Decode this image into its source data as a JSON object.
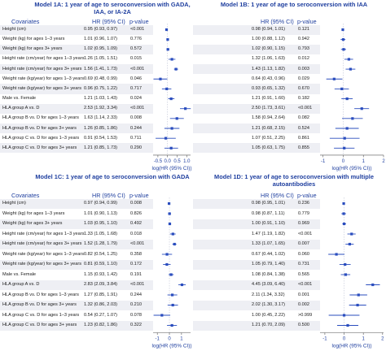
{
  "colors": {
    "marker": "#2a4dbe",
    "title": "#1f3f9f",
    "band": "#eeeff4"
  },
  "chart_data": [
    {
      "type": "forest",
      "title": "Model 1A: 1 year of age to seroconversion with GADA, IAA, or IA-2A",
      "headers": {
        "covariates": "Covariates",
        "hr": "HR (95% CI)",
        "p": "p-value"
      },
      "xlabel": "log(HR (95% CI))",
      "xticks": [
        -0.5,
        0.0,
        0.5,
        1.0
      ],
      "xtick_labels": [
        "-0.5",
        "0.0",
        "0.5",
        "1.0"
      ],
      "xlim": [
        -0.75,
        1.2
      ],
      "rows": [
        {
          "label": "Height (cm)",
          "hr": "0.95 (0.93, 0.97)",
          "p": "<0.001",
          "est": -0.05,
          "lo": -0.07,
          "hi": -0.03
        },
        {
          "label": "Weight (kg) for ages 1–3 years",
          "hr": "1.01 (0.96, 1.07)",
          "p": "0.776",
          "est": 0.01,
          "lo": -0.04,
          "hi": 0.07
        },
        {
          "label": "Weight (kg) for ages 3+ years",
          "hr": "1.02 (0.95, 1.09)",
          "p": "0.572",
          "est": 0.02,
          "lo": -0.05,
          "hi": 0.09
        },
        {
          "label": "Height rate (cm/year) for ages 1–3 years",
          "hr": "1.26 (1.05, 1.51)",
          "p": "0.015",
          "est": 0.23,
          "lo": 0.05,
          "hi": 0.41
        },
        {
          "label": "Height rate (cm/year) for ages 3+ years",
          "hr": "1.56 (1.41, 1.73)",
          "p": "<0.001",
          "est": 0.44,
          "lo": 0.34,
          "hi": 0.55
        },
        {
          "label": "Weight rate (kg/year) for ages 1–3 years",
          "hr": "0.69 (0.48, 0.99)",
          "p": "0.046",
          "est": -0.37,
          "lo": -0.73,
          "hi": -0.01
        },
        {
          "label": "Weight rate (kg/year) for ages 3+ years",
          "hr": "0.96 (0.75, 1.22)",
          "p": "0.717",
          "est": -0.04,
          "lo": -0.29,
          "hi": 0.2
        },
        {
          "label": "Male vs. Female",
          "hr": "1.21 (1.03, 1.43)",
          "p": "0.024",
          "est": 0.19,
          "lo": 0.03,
          "hi": 0.36
        },
        {
          "label": "HLA group A vs. D",
          "hr": "2.53 (1.92, 3.34)",
          "p": "<0.001",
          "est": 0.93,
          "lo": 0.65,
          "hi": 1.21
        },
        {
          "label": "HLA group B vs. D for ages 1–3 years",
          "hr": "1.63 (1.14, 2.33)",
          "p": "0.008",
          "est": 0.49,
          "lo": 0.13,
          "hi": 0.85
        },
        {
          "label": "HLA group B vs. D for ages 3+ years",
          "hr": "1.26 (0.85, 1.86)",
          "p": "0.244",
          "est": 0.23,
          "lo": -0.16,
          "hi": 0.62
        },
        {
          "label": "HLA group C vs. D for ages 1–3 years",
          "hr": "0.91 (0.54, 1.53)",
          "p": "0.711",
          "est": -0.09,
          "lo": -0.62,
          "hi": 0.43
        },
        {
          "label": "HLA group C vs. D for ages 3+ years",
          "hr": "1.21 (0.85, 1.73)",
          "p": "0.290",
          "est": 0.19,
          "lo": -0.16,
          "hi": 0.55
        }
      ]
    },
    {
      "type": "forest",
      "title": "Model 1B: 1 year of age to seroconversion with IAA",
      "headers": {
        "covariates": "",
        "hr": "HR (95% CI)",
        "p": "p-value"
      },
      "xlabel": "log(HR (95% CI))",
      "xticks": [
        -1,
        0,
        1,
        2
      ],
      "xtick_labels": [
        "-1",
        "0",
        "1",
        "2"
      ],
      "xlim": [
        -1.15,
        2.0
      ],
      "rows": [
        {
          "label": "Height (cm)",
          "hr": "0.98 (0.94, 1.01)",
          "p": "0.121",
          "est": -0.02,
          "lo": -0.06,
          "hi": 0.01
        },
        {
          "label": "Weight (kg) for ages 1–3 years",
          "hr": "1.00 (0.88, 1.12)",
          "p": "0.942",
          "est": 0.0,
          "lo": -0.13,
          "hi": 0.11
        },
        {
          "label": "Weight (kg) for ages 3+ years",
          "hr": "1.02 (0.90, 1.15)",
          "p": "0.793",
          "est": 0.02,
          "lo": -0.11,
          "hi": 0.14
        },
        {
          "label": "Height rate (cm/year) for ages 1–3 years",
          "hr": "1.32 (1.06, 1.63)",
          "p": "0.012",
          "est": 0.28,
          "lo": 0.06,
          "hi": 0.49
        },
        {
          "label": "Height rate (cm/year) for ages 3+ years",
          "hr": "1.43 (1.13, 1.82)",
          "p": "0.003",
          "est": 0.36,
          "lo": 0.12,
          "hi": 0.6
        },
        {
          "label": "Weight rate (kg/year) for ages 1–3 years",
          "hr": "0.64 (0.43, 0.96)",
          "p": "0.029",
          "est": -0.45,
          "lo": -0.84,
          "hi": -0.04
        },
        {
          "label": "Weight rate (kg/year) for ages 3+ years",
          "hr": "0.93 (0.65, 1.32)",
          "p": "0.670",
          "est": -0.07,
          "lo": -0.43,
          "hi": 0.28
        },
        {
          "label": "Male vs. Female",
          "hr": "1.21 (0.91, 1.60)",
          "p": "0.182",
          "est": 0.19,
          "lo": -0.09,
          "hi": 0.47
        },
        {
          "label": "HLA group A vs. D",
          "hr": "2.50 (1.73, 3.61)",
          "p": "<0.001",
          "est": 0.92,
          "lo": 0.55,
          "hi": 1.28
        },
        {
          "label": "HLA group B vs. D for ages 1–3 years",
          "hr": "1.58 (0.94, 2.64)",
          "p": "0.082",
          "est": 0.46,
          "lo": -0.06,
          "hi": 0.97
        },
        {
          "label": "HLA group B vs. D for ages 3+ years",
          "hr": "1.21 (0.68, 2.15)",
          "p": "0.524",
          "est": 0.19,
          "lo": -0.39,
          "hi": 0.77
        },
        {
          "label": "HLA group C vs. D for ages 1–3 years",
          "hr": "1.07 (0.51, 2.25)",
          "p": "0.861",
          "est": 0.07,
          "lo": -0.67,
          "hi": 0.81
        },
        {
          "label": "HLA group C vs. D for ages 3+ years",
          "hr": "1.05 (0.63, 1.75)",
          "p": "0.855",
          "est": 0.05,
          "lo": -0.46,
          "hi": 0.56
        }
      ]
    },
    {
      "type": "forest",
      "title": "Model 1C: 1 year of age to seroconversion with GADA",
      "headers": {
        "covariates": "Covariates",
        "hr": "HR (95% CI)",
        "p": "p-value"
      },
      "xlabel": "log(HR (95% CI))",
      "xticks": [
        -1,
        0,
        1
      ],
      "xtick_labels": [
        "-1",
        "0",
        "1"
      ],
      "xlim": [
        -1.35,
        1.75
      ],
      "rows": [
        {
          "label": "Height (cm)",
          "hr": "0.97 (0.94, 0.99)",
          "p": "0.008",
          "est": -0.03,
          "lo": -0.06,
          "hi": -0.01
        },
        {
          "label": "Weight (kg) for ages 1–3 years",
          "hr": "1.01 (0.90, 1.13)",
          "p": "0.826",
          "est": 0.01,
          "lo": -0.11,
          "hi": 0.12
        },
        {
          "label": "Weight (kg) for ages 3+ years",
          "hr": "1.03 (0.95, 1.10)",
          "p": "0.492",
          "est": 0.03,
          "lo": -0.05,
          "hi": 0.1
        },
        {
          "label": "Height rate (cm/year) for ages 1–3 years",
          "hr": "1.33 (1.05, 1.68)",
          "p": "0.018",
          "est": 0.29,
          "lo": 0.05,
          "hi": 0.52
        },
        {
          "label": "Height rate (cm/year) for ages 3+ years",
          "hr": "1.52 (1.28, 1.79)",
          "p": "<0.001",
          "est": 0.42,
          "lo": 0.25,
          "hi": 0.58
        },
        {
          "label": "Weight rate (kg/year) for ages 1–3 years",
          "hr": "0.82 (0.54, 1.25)",
          "p": "0.358",
          "est": -0.2,
          "lo": -0.62,
          "hi": 0.22
        },
        {
          "label": "Weight rate (kg/year) for ages 3+ years",
          "hr": "0.81 (0.59, 1.10)",
          "p": "0.172",
          "est": -0.21,
          "lo": -0.53,
          "hi": 0.1
        },
        {
          "label": "Male vs. Female",
          "hr": "1.15 (0.93, 1.42)",
          "p": "0.191",
          "est": 0.14,
          "lo": -0.07,
          "hi": 0.35
        },
        {
          "label": "HLA group A vs. D",
          "hr": "2.83 (2.09, 3.84)",
          "p": "<0.001",
          "est": 1.04,
          "lo": 0.74,
          "hi": 1.35
        },
        {
          "label": "HLA group B vs. D for ages 1–3 years",
          "hr": "1.27 (0.85, 1.91)",
          "p": "0.244",
          "est": 0.24,
          "lo": -0.16,
          "hi": 0.65
        },
        {
          "label": "HLA group B vs. D for ages 3+ years",
          "hr": "1.32 (0.86, 2.03)",
          "p": "0.210",
          "est": 0.28,
          "lo": -0.15,
          "hi": 0.71
        },
        {
          "label": "HLA group C vs. D for ages 1–3 years",
          "hr": "0.54 (0.27, 1.07)",
          "p": "0.078",
          "est": -0.62,
          "lo": -1.31,
          "hi": 0.07
        },
        {
          "label": "HLA group C vs. D for ages 3+ years",
          "hr": "1.23 (0.82, 1.86)",
          "p": "0.322",
          "est": 0.21,
          "lo": -0.2,
          "hi": 0.62
        }
      ]
    },
    {
      "type": "forest",
      "title": "Model 1D: 1 year of age to seroconversion with multiple autoantibodies",
      "headers": {
        "covariates": "",
        "hr": "HR (95% CI)",
        "p": "p-value"
      },
      "xlabel": "log(HR (95% CI))",
      "xticks": [
        -1,
        0,
        1,
        2
      ],
      "xtick_labels": [
        "-1",
        "0",
        "1",
        "2"
      ],
      "xlim": [
        -1.25,
        2.05
      ],
      "rows": [
        {
          "label": "Height (cm)",
          "hr": "0.98 (0.95, 1.01)",
          "p": "0.236",
          "est": -0.02,
          "lo": -0.05,
          "hi": 0.01
        },
        {
          "label": "Weight (kg) for ages 1–3 years",
          "hr": "0.98 (0.87, 1.11)",
          "p": "0.779",
          "est": -0.02,
          "lo": -0.14,
          "hi": 0.1
        },
        {
          "label": "Weight (kg) for ages 3+ years",
          "hr": "1.00 (0.91, 1.10)",
          "p": "0.969",
          "est": 0.0,
          "lo": -0.09,
          "hi": 0.1
        },
        {
          "label": "Height rate (cm/year) for ages 1–3 years",
          "hr": "1.47 (1.19, 1.82)",
          "p": "<0.001",
          "est": 0.39,
          "lo": 0.17,
          "hi": 0.6
        },
        {
          "label": "Height rate (cm/year) for ages 3+ years",
          "hr": "1.33 (1.07, 1.65)",
          "p": "0.007",
          "est": 0.29,
          "lo": 0.07,
          "hi": 0.5
        },
        {
          "label": "Weight rate (kg/year) for ages 1–3 years",
          "hr": "0.67 (0.44, 1.02)",
          "p": "0.060",
          "est": -0.4,
          "lo": -0.82,
          "hi": 0.02
        },
        {
          "label": "Weight rate (kg/year) for ages 3+ years",
          "hr": "1.05 (0.79, 1.40)",
          "p": "0.731",
          "est": 0.05,
          "lo": -0.24,
          "hi": 0.34
        },
        {
          "label": "Male vs. Female",
          "hr": "1.08 (0.84, 1.38)",
          "p": "0.565",
          "est": 0.08,
          "lo": -0.17,
          "hi": 0.32
        },
        {
          "label": "HLA group A vs. D",
          "hr": "4.45 (3.09, 6.40)",
          "p": "<0.001",
          "est": 1.49,
          "lo": 1.13,
          "hi": 1.86
        },
        {
          "label": "HLA group B vs. D for ages 1–3 years",
          "hr": "2.11 (1.34, 3.32)",
          "p": "0.001",
          "est": 0.75,
          "lo": 0.29,
          "hi": 1.2
        },
        {
          "label": "HLA group B vs. D for ages 3+ years",
          "hr": "2.02 (1.30, 3.17)",
          "p": "0.002",
          "est": 0.7,
          "lo": 0.26,
          "hi": 1.15
        },
        {
          "label": "HLA group C vs. D for ages 1–3 years",
          "hr": "1.00 (0.45, 2.22)",
          "p": ">0.999",
          "est": 0.0,
          "lo": -0.8,
          "hi": 0.8
        },
        {
          "label": "HLA group C vs. D for ages 3+ years",
          "hr": "1.21 (0.70, 2.09)",
          "p": "0.500",
          "est": 0.19,
          "lo": -0.36,
          "hi": 0.74
        }
      ]
    }
  ]
}
